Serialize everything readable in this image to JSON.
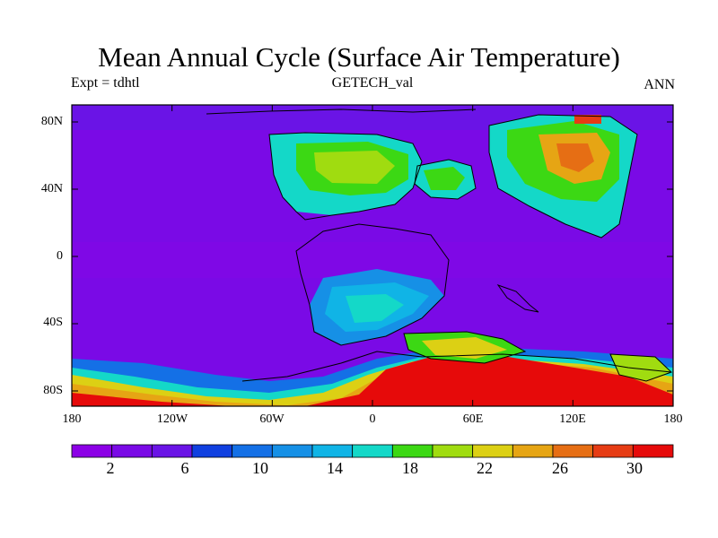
{
  "header": {
    "title": "Mean Annual Cycle (Surface Air Temperature)",
    "experiment": "Expt = tdhtl",
    "dataset": "GETECH_val",
    "season": "ANN"
  },
  "map": {
    "variable": "Surface Air Temperature",
    "lat_labels": [
      "80N",
      "40N",
      "0",
      "40S",
      "80S"
    ],
    "lon_labels": [
      "180",
      "120W",
      "60W",
      "0",
      "60E",
      "120E",
      "180"
    ]
  },
  "colorbar": {
    "labels": [
      "2",
      "6",
      "10",
      "14",
      "18",
      "22",
      "26",
      "30"
    ],
    "colors": [
      "#8c00e6",
      "#7a0ae6",
      "#6a14e6",
      "#1040e0",
      "#1470e6",
      "#1690e6",
      "#10b4e6",
      "#14d8c8",
      "#3cd814",
      "#a0dc10",
      "#dcd014",
      "#e6a514",
      "#e66e14",
      "#e63c14",
      "#e60a0a"
    ]
  }
}
